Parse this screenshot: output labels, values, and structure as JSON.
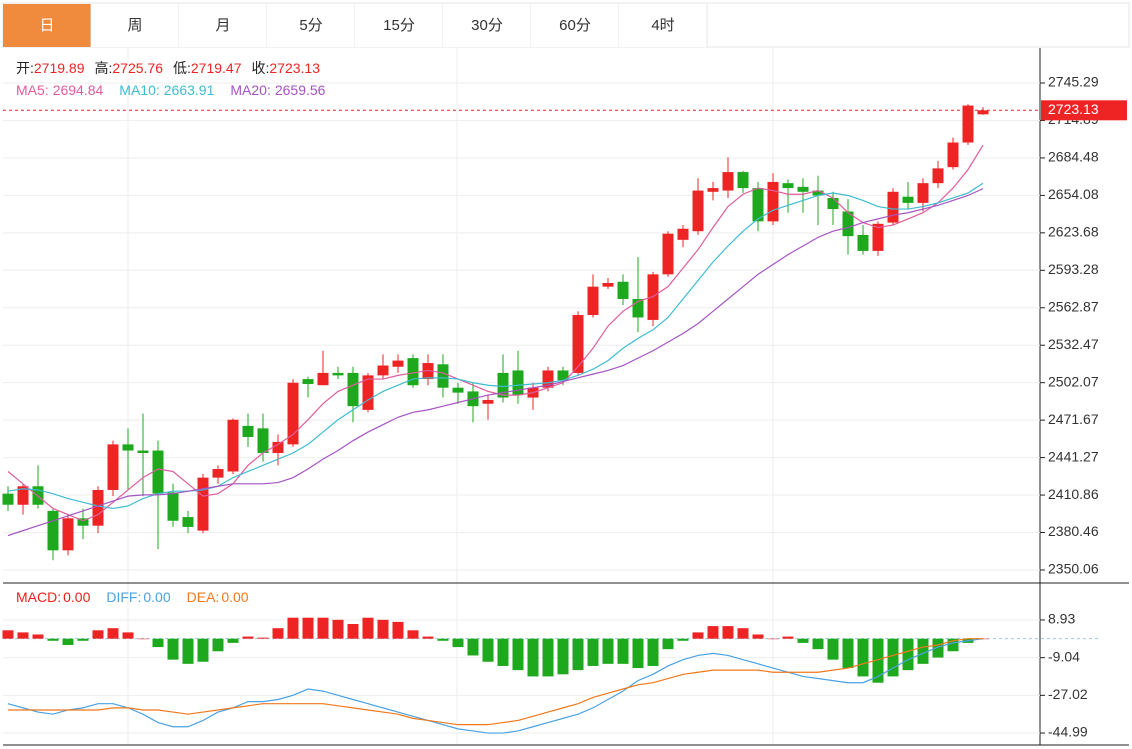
{
  "tabs": [
    "日",
    "周",
    "月",
    "5分",
    "15分",
    "30分",
    "60分",
    "4时"
  ],
  "active_tab": 0,
  "chart_data": [
    {
      "type": "candlestick",
      "up_color": "#ee2424",
      "down_color": "#1ea81e",
      "quote_labels": {
        "open": "开:",
        "high": "高:",
        "low": "低:",
        "close": "收:"
      },
      "open": [
        2412,
        2403,
        2418,
        2398,
        2366,
        2392,
        2386,
        2415,
        2452,
        2447,
        2447,
        2413,
        2393,
        2382,
        2425,
        2430,
        2467,
        2465,
        2445,
        2452,
        2505,
        2500,
        2510,
        2510,
        2480,
        2508,
        2515,
        2522,
        2505,
        2517,
        2498,
        2495,
        2485,
        2510,
        2512,
        2490,
        2498,
        2512,
        2510,
        2557,
        2580,
        2584,
        2570,
        2553,
        2590,
        2618,
        2625,
        2657,
        2658,
        2673,
        2660,
        2633,
        2664,
        2661,
        2658,
        2652,
        2641,
        2622,
        2609,
        2632,
        2653,
        2648,
        2664,
        2677,
        2697,
        2719.89
      ],
      "high": [
        2418,
        2420,
        2435,
        2400,
        2395,
        2400,
        2418,
        2455,
        2465,
        2477,
        2455,
        2420,
        2398,
        2428,
        2435,
        2473,
        2477,
        2477,
        2460,
        2505,
        2507,
        2528,
        2515,
        2515,
        2510,
        2525,
        2525,
        2525,
        2525,
        2525,
        2502,
        2502,
        2492,
        2525,
        2528,
        2502,
        2515,
        2515,
        2560,
        2590,
        2587,
        2590,
        2604,
        2592,
        2625,
        2630,
        2668,
        2665,
        2685,
        2674,
        2665,
        2672,
        2667,
        2668,
        2670,
        2657,
        2651,
        2630,
        2633,
        2660,
        2665,
        2668,
        2682,
        2701,
        2728,
        2725.76
      ],
      "low": [
        2398,
        2395,
        2400,
        2358,
        2362,
        2375,
        2380,
        2410,
        2415,
        2410,
        2367,
        2385,
        2380,
        2380,
        2420,
        2428,
        2450,
        2438,
        2435,
        2450,
        2490,
        2500,
        2505,
        2470,
        2478,
        2505,
        2510,
        2498,
        2500,
        2490,
        2485,
        2470,
        2472,
        2486,
        2485,
        2480,
        2495,
        2500,
        2508,
        2555,
        2578,
        2565,
        2543,
        2548,
        2588,
        2612,
        2622,
        2650,
        2652,
        2656,
        2625,
        2630,
        2640,
        2640,
        2630,
        2630,
        2606,
        2606,
        2605,
        2630,
        2643,
        2641,
        2660,
        2675,
        2695,
        2719.47
      ],
      "close": [
        2403,
        2418,
        2403,
        2366,
        2392,
        2386,
        2415,
        2452,
        2447,
        2445,
        2412,
        2390,
        2385,
        2425,
        2432,
        2472,
        2458,
        2445,
        2454,
        2502,
        2501,
        2510,
        2508,
        2483,
        2508,
        2516,
        2520,
        2500,
        2518,
        2498,
        2494,
        2483,
        2488,
        2490,
        2492,
        2498,
        2512,
        2504,
        2557,
        2580,
        2583,
        2570,
        2555,
        2590,
        2623,
        2627,
        2658,
        2660,
        2673,
        2660,
        2633,
        2665,
        2660,
        2657,
        2654,
        2643,
        2621,
        2609,
        2631,
        2657,
        2648,
        2664,
        2676,
        2697,
        2727,
        2723.13
      ],
      "series": [
        {
          "name": "MA5:",
          "color": "#df5c9e",
          "values": [
            2430,
            2420,
            2410,
            2400,
            2395,
            2390,
            2395,
            2405,
            2415,
            2425,
            2432,
            2430,
            2420,
            2410,
            2412,
            2420,
            2435,
            2445,
            2452,
            2460,
            2472,
            2485,
            2495,
            2500,
            2505,
            2505,
            2508,
            2510,
            2512,
            2510,
            2505,
            2500,
            2495,
            2492,
            2492,
            2494,
            2498,
            2502,
            2515,
            2530,
            2548,
            2560,
            2568,
            2572,
            2580,
            2595,
            2610,
            2628,
            2645,
            2655,
            2660,
            2658,
            2655,
            2655,
            2658,
            2652,
            2640,
            2632,
            2628,
            2630,
            2635,
            2640,
            2648,
            2660,
            2675,
            2694.84
          ]
        },
        {
          "name": "MA10:",
          "color": "#3ebcd2",
          "values": [
            2414,
            2416,
            2415,
            2412,
            2408,
            2405,
            2402,
            2400,
            2402,
            2408,
            2412,
            2414,
            2414,
            2415,
            2418,
            2425,
            2430,
            2435,
            2440,
            2445,
            2452,
            2462,
            2472,
            2480,
            2488,
            2495,
            2500,
            2505,
            2506,
            2506,
            2505,
            2502,
            2500,
            2499,
            2500,
            2501,
            2502,
            2504,
            2508,
            2513,
            2520,
            2530,
            2538,
            2545,
            2555,
            2570,
            2585,
            2600,
            2613,
            2625,
            2635,
            2642,
            2646,
            2650,
            2654,
            2656,
            2654,
            2650,
            2645,
            2643,
            2643,
            2645,
            2648,
            2652,
            2656,
            2663.91
          ]
        },
        {
          "name": "MA20:",
          "color": "#a653c2",
          "values": [
            2378,
            2382,
            2386,
            2390,
            2394,
            2398,
            2402,
            2406,
            2410,
            2411,
            2411,
            2412,
            2414,
            2416,
            2418,
            2420,
            2420,
            2420,
            2421,
            2425,
            2432,
            2440,
            2447,
            2455,
            2462,
            2468,
            2474,
            2478,
            2480,
            2483,
            2486,
            2489,
            2492,
            2494,
            2496,
            2498,
            2500,
            2503,
            2506,
            2509,
            2512,
            2516,
            2522,
            2528,
            2535,
            2542,
            2550,
            2560,
            2570,
            2580,
            2590,
            2598,
            2606,
            2613,
            2620,
            2625,
            2628,
            2632,
            2635,
            2638,
            2640,
            2643,
            2646,
            2650,
            2654,
            2659.56
          ]
        }
      ],
      "ylim": [
        2340.3,
        2773.7
      ],
      "yticks": [
        2350.06,
        2380.46,
        2410.86,
        2441.27,
        2471.67,
        2502.07,
        2532.47,
        2562.87,
        2593.28,
        2623.68,
        2654.08,
        2684.48,
        2714.89,
        2745.29
      ],
      "grid": true,
      "last_price_line": true
    },
    {
      "type": "macd",
      "up_color": "#ee2424",
      "down_color": "#1ea81e",
      "series": [
        {
          "name": "MACD:",
          "color": "#e8201c",
          "current": {
            "value": 0,
            "label": "0.00"
          },
          "values": [
            4,
            3,
            2,
            -1,
            -3,
            -1,
            4,
            5,
            3,
            0,
            -4,
            -10,
            -12,
            -11,
            -6,
            -2,
            1,
            0.5,
            5,
            10,
            10,
            10,
            9,
            7,
            10,
            9,
            8,
            4,
            1,
            -1,
            -4,
            -8,
            -11,
            -13,
            -15,
            -18,
            -18,
            -17,
            -15,
            -13,
            -12,
            -12,
            -14,
            -13,
            -5,
            -1,
            3,
            6,
            6,
            5,
            2,
            0,
            1,
            -2,
            -5,
            -10,
            -14,
            -18,
            -21,
            -18,
            -15,
            -12,
            -9,
            -6,
            -2,
            0
          ]
        },
        {
          "name": "DIFF:",
          "color": "#4aa2e2",
          "current": {
            "value": 0,
            "label": "0.00"
          },
          "values": [
            -31,
            -33,
            -35,
            -36,
            -34,
            -33,
            -31,
            -31,
            -33,
            -36,
            -40,
            -42,
            -42,
            -39,
            -35,
            -33,
            -30,
            -30,
            -29,
            -27,
            -24,
            -25,
            -27,
            -29,
            -31,
            -33,
            -35,
            -37,
            -39,
            -41,
            -43,
            -44,
            -45,
            -45,
            -44,
            -42,
            -40,
            -38,
            -36,
            -33,
            -29,
            -25,
            -20,
            -17,
            -13,
            -10,
            -8,
            -7,
            -8,
            -10,
            -12,
            -14,
            -16,
            -18,
            -19,
            -20,
            -21,
            -21,
            -18,
            -14,
            -10,
            -7,
            -4,
            -2,
            -1,
            0
          ]
        },
        {
          "name": "DEA:",
          "color": "#f0781c",
          "current": {
            "value": 0,
            "label": "0.00"
          },
          "values": [
            -34,
            -34,
            -34,
            -34,
            -34,
            -34,
            -34,
            -33,
            -33,
            -34,
            -34,
            -35,
            -36,
            -35,
            -34,
            -33,
            -32,
            -31,
            -31,
            -31,
            -31,
            -31,
            -32,
            -33,
            -34,
            -35,
            -36,
            -38,
            -39,
            -40,
            -41,
            -41,
            -41,
            -40,
            -39,
            -37,
            -35,
            -33,
            -31,
            -28,
            -26,
            -24,
            -22,
            -21,
            -19,
            -17,
            -16,
            -15,
            -15,
            -15,
            -15,
            -16,
            -16,
            -16,
            -16,
            -15,
            -14,
            -12,
            -10,
            -8,
            -6,
            -4,
            -3,
            -1,
            0,
            0
          ]
        }
      ],
      "ylim": [
        -50.7,
        25.6
      ],
      "yticks": [
        8.93,
        -9.04,
        -27.02,
        -44.99
      ],
      "grid": true
    }
  ]
}
